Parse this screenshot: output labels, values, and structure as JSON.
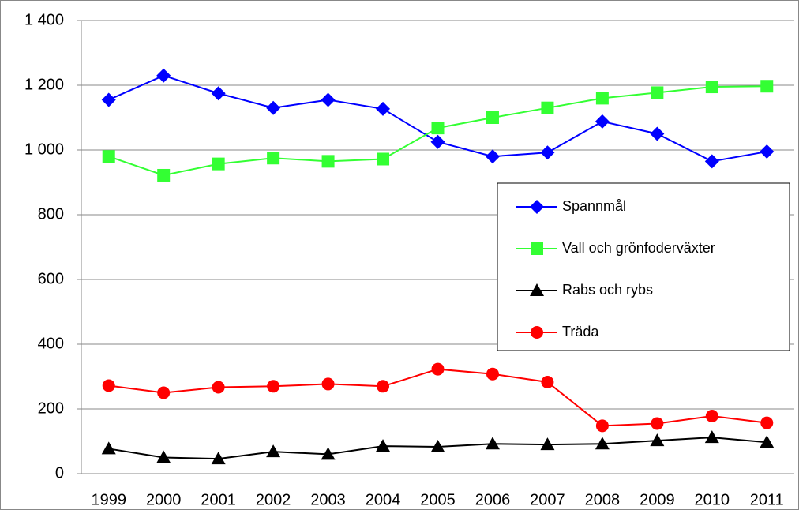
{
  "chart_data": {
    "type": "line",
    "categories": [
      "1999",
      "2000",
      "2001",
      "2002",
      "2003",
      "2004",
      "2005",
      "2006",
      "2007",
      "2008",
      "2009",
      "2010",
      "2011"
    ],
    "series": [
      {
        "name": "Spannmål",
        "color": "#0000ff",
        "marker": "diamond",
        "values": [
          1155,
          1230,
          1175,
          1130,
          1155,
          1127,
          1025,
          980,
          992,
          1088,
          1050,
          965,
          995
        ]
      },
      {
        "name": "Vall och grönfoderväxter",
        "color": "#33ff33",
        "marker": "square",
        "values": [
          980,
          922,
          957,
          975,
          965,
          972,
          1068,
          1100,
          1130,
          1160,
          1177,
          1195,
          1197
        ]
      },
      {
        "name": "Rabs och rybs",
        "color": "#000000",
        "marker": "triangle",
        "values": [
          77,
          50,
          46,
          68,
          60,
          85,
          83,
          92,
          90,
          92,
          102,
          112,
          97
        ]
      },
      {
        "name": "Träda",
        "color": "#ff0000",
        "marker": "circle",
        "values": [
          272,
          250,
          267,
          270,
          277,
          270,
          323,
          308,
          283,
          148,
          155,
          178,
          157
        ]
      }
    ],
    "ylim": [
      0,
      1400
    ],
    "yticks": [
      0,
      200,
      400,
      600,
      800,
      {
        "value": 1000,
        "label": "1 000"
      },
      {
        "value": 1200,
        "label": "1 200"
      },
      {
        "value": 1400,
        "label": "1 400"
      }
    ],
    "grid": true
  }
}
